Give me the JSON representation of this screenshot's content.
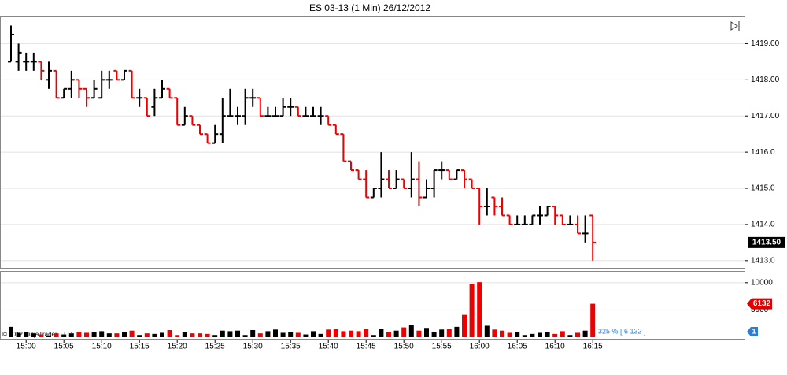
{
  "chart_data": [
    {
      "type": "ohlc",
      "title": "ES 03-13 (1 Min)  26/12/2012",
      "categories": [
        null,
        null,
        "15:00",
        null,
        null,
        null,
        null,
        "15:05",
        null,
        null,
        null,
        null,
        "15:10",
        null,
        null,
        null,
        null,
        "15:15",
        null,
        null,
        null,
        null,
        "15:20",
        null,
        null,
        null,
        null,
        "15:25",
        null,
        null,
        null,
        null,
        "15:30",
        null,
        null,
        null,
        null,
        "15:35",
        null,
        null,
        null,
        null,
        "15:40",
        null,
        null,
        null,
        null,
        "15:45",
        null,
        null,
        null,
        null,
        "15:50",
        null,
        null,
        null,
        null,
        "15:55",
        null,
        null,
        null,
        null,
        "16:00",
        null,
        null,
        null,
        null,
        "16:05",
        null,
        null,
        null,
        null,
        "16:10",
        null,
        null,
        null,
        null,
        "16:15"
      ],
      "open": [
        1418.5,
        1418.5,
        1418.5,
        1418.5,
        1418.5,
        1418,
        1418.25,
        1417.5,
        1417.75,
        1418,
        1417.75,
        1417.5,
        1417.5,
        1418,
        1418.25,
        1418,
        1418.25,
        1417.5,
        1417.5,
        1417.25,
        1417.5,
        1417.75,
        1417.5,
        1416.75,
        1417,
        1416.75,
        1416.5,
        1416.25,
        1416.5,
        1417,
        1417,
        1417,
        1417.5,
        1417.5,
        1417,
        1417,
        1417,
        1417.25,
        1417.25,
        1417,
        1417,
        1417,
        1417,
        1416.75,
        1416.5,
        1415.75,
        1415.5,
        1415.25,
        1414.75,
        1415,
        1415.25,
        1415,
        1415.25,
        1415,
        1415.25,
        1414.75,
        1415,
        1415.5,
        1415.5,
        1415.25,
        1415.5,
        1415.25,
        1415,
        1414.5,
        1414.75,
        1414.5,
        1414.25,
        1414,
        1414,
        1414,
        1414.25,
        1414.25,
        1414.5,
        1414.25,
        1414,
        1414,
        1413.75,
        1414.25
      ],
      "high": [
        1419.5,
        1419,
        1418.75,
        1418.75,
        1418.5,
        1418.5,
        1418.25,
        1417.75,
        1418.25,
        1418,
        1417.75,
        1418,
        1418.25,
        1418.25,
        1418.25,
        1418.25,
        1418.25,
        1417.75,
        1417.5,
        1417.75,
        1418,
        1417.75,
        1417.5,
        1417.25,
        1417,
        1416.75,
        1416.5,
        1416.75,
        1417.5,
        1417.75,
        1417.25,
        1417.75,
        1417.75,
        1417.5,
        1417.25,
        1417.25,
        1417.5,
        1417.5,
        1417.25,
        1417.25,
        1417.25,
        1417.25,
        1417,
        1416.75,
        1416.5,
        1415.75,
        1415.5,
        1415.5,
        1415,
        1416,
        1415.5,
        1415.5,
        1415.25,
        1416,
        1415.75,
        1415.25,
        1415.5,
        1415.75,
        1415.5,
        1415.5,
        1415.5,
        1415.25,
        1415,
        1415,
        1414.75,
        1414.75,
        1414.25,
        1414.25,
        1414.25,
        1414.25,
        1414.5,
        1414.5,
        1414.5,
        1414.25,
        1414.25,
        1414.25,
        1414.25,
        1414.25
      ],
      "low": [
        1418.5,
        1418.25,
        1418.25,
        1418.25,
        1418,
        1417.75,
        1417.5,
        1417.5,
        1417.5,
        1417.5,
        1417.25,
        1417.5,
        1417.5,
        1417.75,
        1418,
        1418,
        1417.5,
        1417.25,
        1417,
        1417,
        1417.5,
        1417.5,
        1416.75,
        1416.75,
        1416.75,
        1416.5,
        1416.25,
        1416.25,
        1416.25,
        1417,
        1416.75,
        1416.75,
        1417.25,
        1417,
        1417,
        1417,
        1417,
        1417,
        1417,
        1417,
        1417,
        1416.75,
        1416.75,
        1416.5,
        1415.75,
        1415.5,
        1415.25,
        1414.75,
        1414.75,
        1414.75,
        1415,
        1415,
        1415,
        1414.75,
        1414.5,
        1414.75,
        1414.75,
        1415.25,
        1415.25,
        1415.25,
        1415,
        1415,
        1414,
        1414.25,
        1414.25,
        1414.25,
        1414,
        1414,
        1414,
        1414,
        1414,
        1414.25,
        1414,
        1414,
        1414,
        1413.75,
        1413.5,
        1413
      ],
      "close": [
        1419.25,
        1418.75,
        1418.5,
        1418.5,
        1418.25,
        1418.25,
        1417.5,
        1417.75,
        1418,
        1417.75,
        1417.5,
        1417.75,
        1418,
        1418,
        1418,
        1418.25,
        1417.5,
        1417.5,
        1417,
        1417.5,
        1417.75,
        1417.5,
        1416.75,
        1417,
        1416.75,
        1416.5,
        1416.25,
        1416.5,
        1417,
        1417,
        1417,
        1417.5,
        1417.5,
        1417,
        1417,
        1417,
        1417.25,
        1417.25,
        1417,
        1417,
        1417,
        1417,
        1416.75,
        1416.5,
        1415.75,
        1415.5,
        1415.25,
        1414.75,
        1415,
        1415.25,
        1415,
        1415.25,
        1415,
        1415.25,
        1414.75,
        1415,
        1415.5,
        1415.5,
        1415.25,
        1415.5,
        1415.25,
        1415,
        1414.5,
        1414.5,
        1414.5,
        1414.25,
        1414,
        1414,
        1414,
        1414.25,
        1414.25,
        1414.5,
        1414.25,
        1414,
        1414,
        1413.75,
        1413.75,
        1413.5
      ],
      "up_color": "#000000",
      "down_color": "#ee0000",
      "ylim": [
        1412.8,
        1419.75
      ],
      "yticks": [
        {
          "value": 1413,
          "label": "1413.0"
        },
        {
          "value": 1414,
          "label": "1414.0"
        },
        {
          "value": 1415,
          "label": "1415.0"
        },
        {
          "value": 1416,
          "label": "1416.0"
        },
        {
          "value": 1417,
          "label": "1417.00"
        },
        {
          "value": 1418,
          "label": "1418.00"
        },
        {
          "value": 1419,
          "label": "1419.00"
        }
      ],
      "grid": true,
      "price_marker": {
        "value": 1413.5,
        "label": "1413.50"
      }
    },
    {
      "type": "bar",
      "title": null,
      "values": [
        1900,
        800,
        1000,
        700,
        500,
        300,
        700,
        500,
        700,
        900,
        800,
        900,
        1100,
        700,
        700,
        1000,
        1200,
        400,
        700,
        600,
        800,
        1300,
        400,
        900,
        700,
        700,
        600,
        400,
        1200,
        1100,
        1200,
        400,
        1300,
        700,
        1100,
        1400,
        800,
        1000,
        800,
        500,
        1100,
        600,
        1400,
        1500,
        1100,
        1200,
        1100,
        1500,
        400,
        1500,
        900,
        1200,
        1800,
        2200,
        1200,
        1700,
        900,
        1400,
        1500,
        1900,
        4100,
        9800,
        10100,
        2100,
        1400,
        1200,
        800,
        1000,
        400,
        600,
        800,
        1000,
        600,
        1100,
        400,
        800,
        1200,
        6132
      ],
      "ylim": [
        0,
        12000
      ],
      "yticks": [
        5000,
        10000
      ],
      "grid": true,
      "volume_marker": {
        "value": 6132,
        "label": "6132"
      },
      "annotation": "325 % [ 6 132 ]",
      "tag": "1",
      "copyright": "© 2012 NinjaTrader, LLC"
    }
  ]
}
